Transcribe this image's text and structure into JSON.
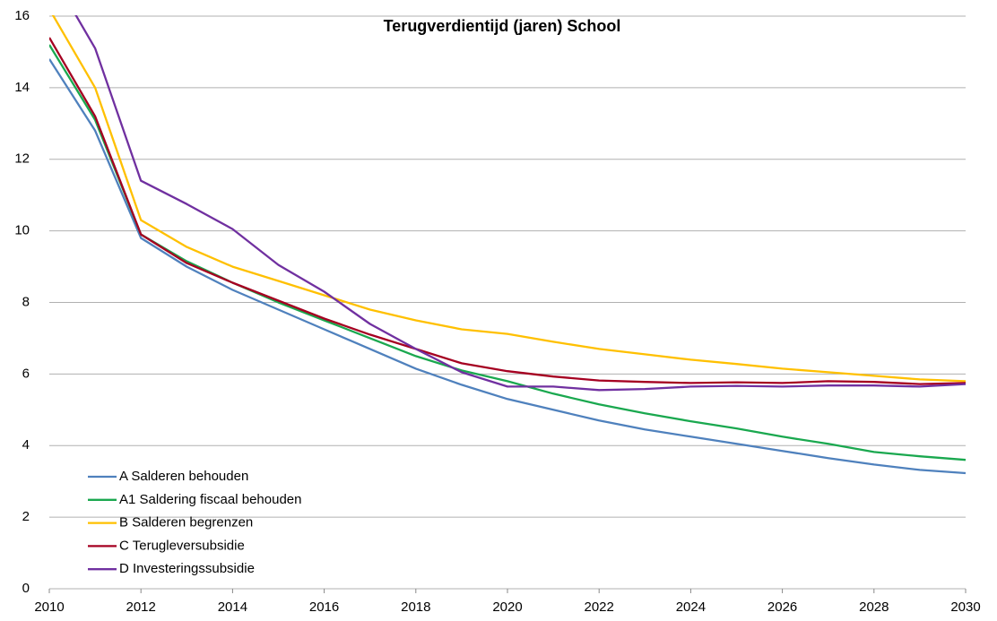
{
  "chart_data": {
    "type": "line",
    "title": "Terugverdientijd (jaren) School",
    "x": [
      2010,
      2011,
      2012,
      2013,
      2014,
      2015,
      2016,
      2017,
      2018,
      2019,
      2020,
      2021,
      2022,
      2023,
      2024,
      2025,
      2026,
      2027,
      2028,
      2029,
      2030
    ],
    "xlim": [
      2010,
      2030
    ],
    "xticks": [
      2010,
      2012,
      2014,
      2016,
      2018,
      2020,
      2022,
      2024,
      2026,
      2028,
      2030
    ],
    "ylim": [
      0,
      16
    ],
    "yticks": [
      0,
      2,
      4,
      6,
      8,
      10,
      12,
      14,
      16
    ],
    "grid": true,
    "legend": "lower left",
    "series": [
      {
        "name": "A Salderen behouden",
        "color": "#4f81bd",
        "values": [
          14.8,
          12.8,
          9.8,
          9.0,
          8.35,
          7.8,
          7.25,
          6.7,
          6.15,
          5.7,
          5.3,
          5.0,
          4.7,
          4.45,
          4.25,
          4.05,
          3.85,
          3.65,
          3.47,
          3.32,
          3.23
        ]
      },
      {
        "name": "A1 Saldering fiscaal behouden",
        "color": "#1aa84f",
        "values": [
          15.2,
          13.1,
          9.9,
          9.15,
          8.55,
          8.0,
          7.5,
          7.0,
          6.5,
          6.1,
          5.8,
          5.45,
          5.15,
          4.9,
          4.68,
          4.48,
          4.25,
          4.05,
          3.82,
          3.7,
          3.6
        ]
      },
      {
        "name": "B Salderen begrenzen",
        "color": "#ffc000",
        "values": [
          16.2,
          14.0,
          10.3,
          9.55,
          9.0,
          8.6,
          8.2,
          7.8,
          7.5,
          7.25,
          7.12,
          6.9,
          6.7,
          6.55,
          6.4,
          6.28,
          6.15,
          6.05,
          5.95,
          5.85,
          5.8
        ]
      },
      {
        "name": "C Terugleversubsidie",
        "color": "#a50021",
        "values": [
          15.4,
          13.2,
          9.9,
          9.1,
          8.55,
          8.05,
          7.55,
          7.1,
          6.7,
          6.3,
          6.08,
          5.93,
          5.82,
          5.78,
          5.75,
          5.77,
          5.75,
          5.8,
          5.78,
          5.72,
          5.75
        ]
      },
      {
        "name": "D Investeringssubsidie",
        "color": "#7030a0",
        "values": [
          17.3,
          15.1,
          11.4,
          10.75,
          10.05,
          9.05,
          8.3,
          7.4,
          6.7,
          6.05,
          5.65,
          5.65,
          5.55,
          5.58,
          5.65,
          5.67,
          5.65,
          5.68,
          5.68,
          5.65,
          5.72
        ]
      }
    ]
  }
}
